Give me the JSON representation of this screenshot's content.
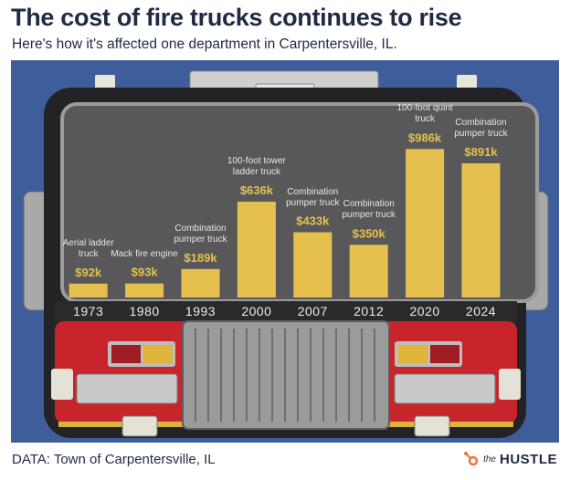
{
  "chart_data": {
    "type": "bar",
    "title": "The cost of fire trucks continues to rise",
    "subtitle": "Here's how it's affected one department in Carpentersville, IL.",
    "categories": [
      "1973",
      "1980",
      "1993",
      "2000",
      "2007",
      "2012",
      "2020",
      "2024"
    ],
    "values": [
      92,
      93,
      189,
      636,
      433,
      350,
      986,
      891
    ],
    "value_labels": [
      "$92k",
      "$93k",
      "$189k",
      "$636k",
      "$433k",
      "$350k",
      "$986k",
      "$891k"
    ],
    "bar_labels": [
      "Aerial ladder truck",
      "Mack fire engine",
      "Combination pumper truck",
      "100-foot tower ladder truck",
      "Combination pumper truck",
      "Combination pumper truck",
      "100-foot quint truck",
      "Combination pumper truck"
    ],
    "color": "#e6c04e"
  },
  "source": "DATA: Town of Carpentersville, IL",
  "brand": {
    "prefix": "the",
    "name": "HUSTLE"
  }
}
